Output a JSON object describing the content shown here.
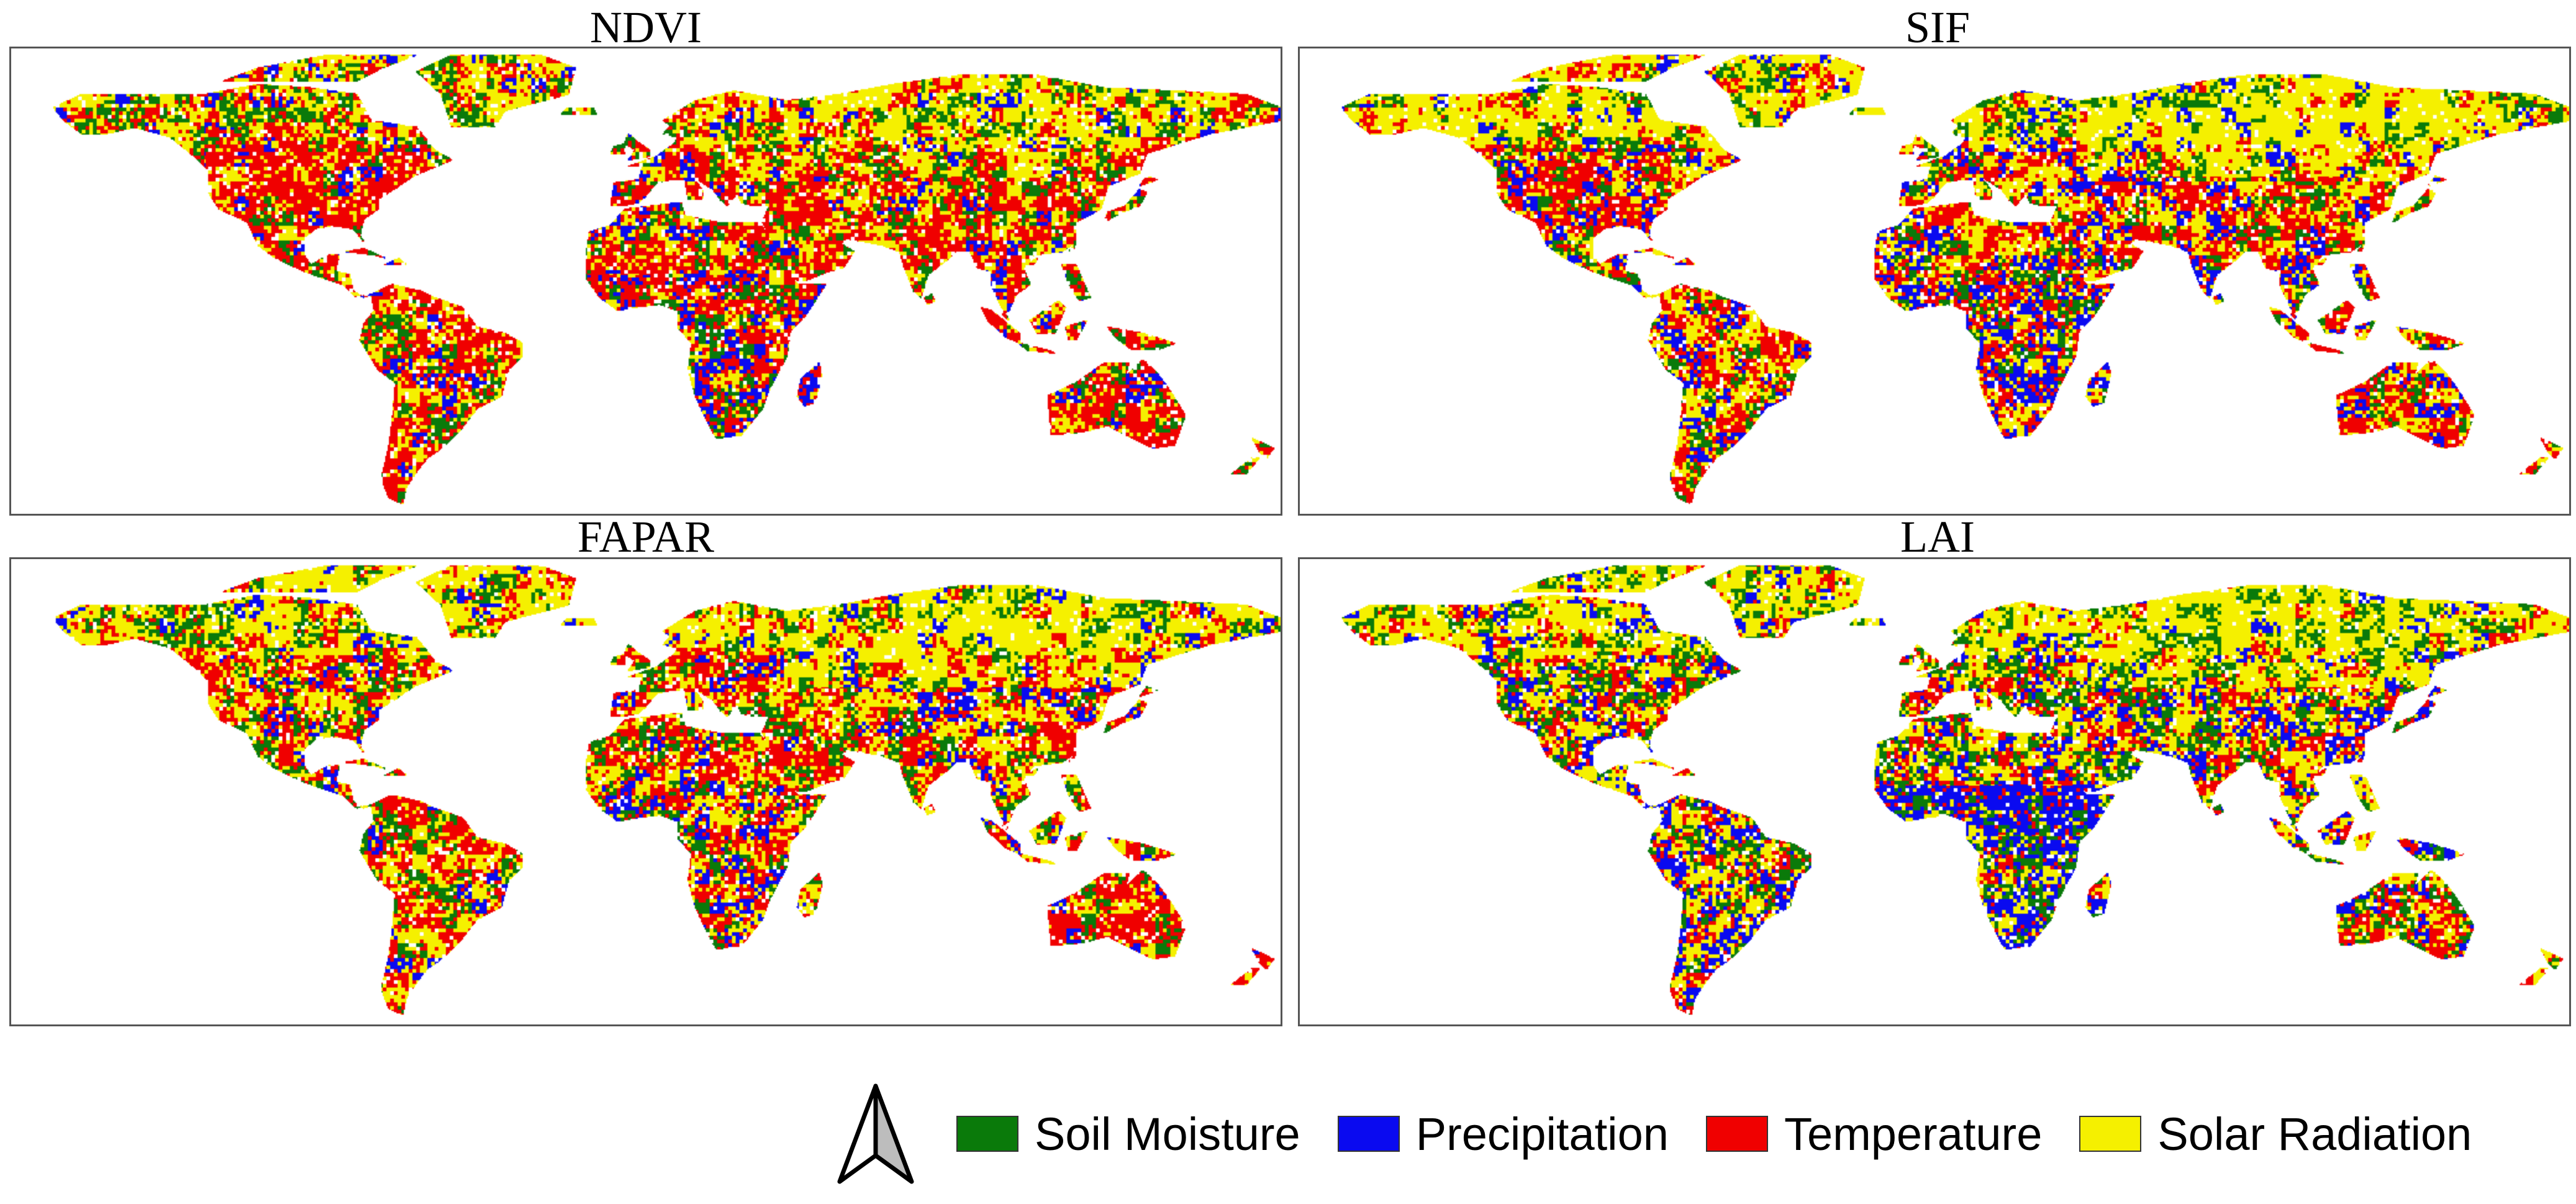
{
  "panels": [
    {
      "id": "ndvi",
      "title": "NDVI",
      "dominant": [
        0.3,
        0.2,
        0.34,
        0.16
      ]
    },
    {
      "id": "sif",
      "title": "SIF",
      "dominant": [
        0.24,
        0.28,
        0.26,
        0.22
      ]
    },
    {
      "id": "fapar",
      "title": "FAPAR",
      "dominant": [
        0.3,
        0.18,
        0.3,
        0.22
      ]
    },
    {
      "id": "lai",
      "title": "LAI",
      "dominant": [
        0.36,
        0.26,
        0.16,
        0.22
      ]
    }
  ],
  "legend": {
    "north_arrow_icon": "north-arrow-icon",
    "items": [
      {
        "label": "Soil Moisture",
        "color": "#0a7a0a"
      },
      {
        "label": "Precipitation",
        "color": "#0a0af0"
      },
      {
        "label": "Temperature",
        "color": "#f00000"
      },
      {
        "label": "Solar Radiation",
        "color": "#f5f000"
      }
    ]
  }
}
